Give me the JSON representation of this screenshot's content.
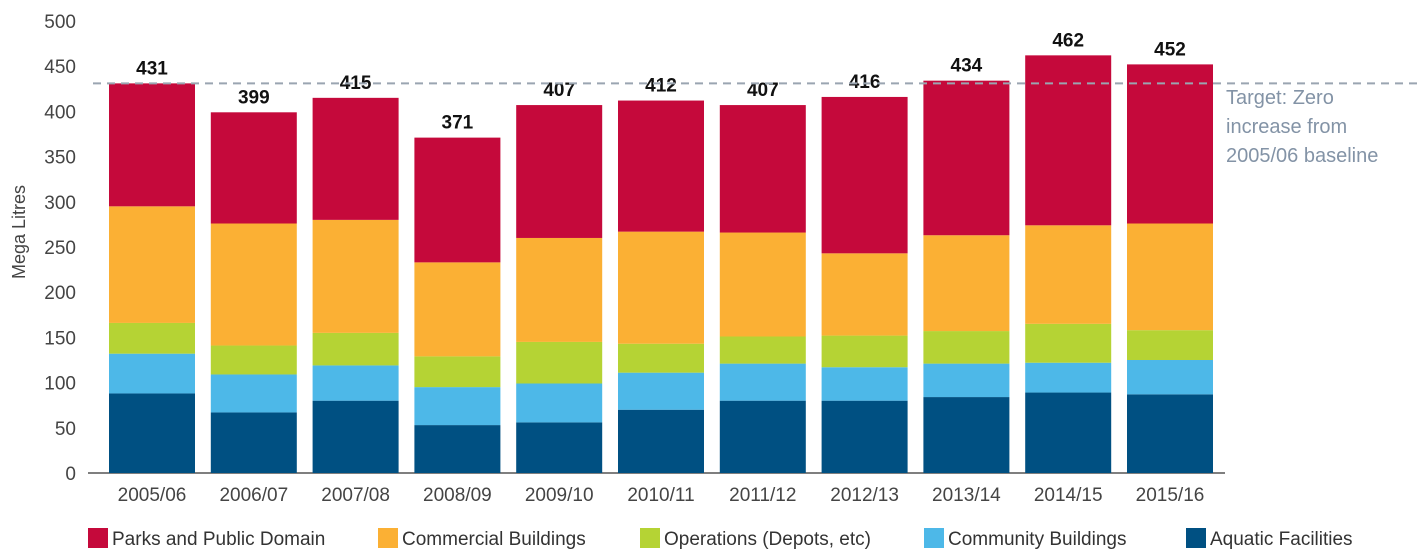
{
  "chart_data": {
    "type": "bar",
    "stacked": true,
    "ylabel": "Mega Litres",
    "ylim": [
      0,
      500
    ],
    "yticks": [
      0,
      50,
      100,
      150,
      200,
      250,
      300,
      350,
      400,
      450,
      500
    ],
    "categories": [
      "2005/06",
      "2006/07",
      "2007/08",
      "2008/09",
      "2009/10",
      "2010/11",
      "2011/12",
      "2012/13",
      "2013/14",
      "2014/15",
      "2015/16"
    ],
    "series": [
      {
        "name": "Aquatic Facilities",
        "color": "#005082",
        "values": [
          88,
          67,
          80,
          53,
          56,
          70,
          80,
          80,
          84,
          89,
          87
        ]
      },
      {
        "name": "Community Buildings",
        "color": "#4db8e8",
        "values": [
          44,
          42,
          39,
          42,
          43,
          41,
          41,
          37,
          37,
          33,
          38
        ]
      },
      {
        "name": "Operations (Depots, etc)",
        "color": "#b5d334",
        "values": [
          34,
          32,
          36,
          34,
          46,
          32,
          30,
          35,
          36,
          43,
          33
        ]
      },
      {
        "name": "Commercial Buildings",
        "color": "#fbb034",
        "values": [
          129,
          135,
          125,
          104,
          115,
          124,
          115,
          91,
          106,
          109,
          118
        ]
      },
      {
        "name": "Parks and Public Domain",
        "color": "#c5093b",
        "values": [
          136,
          123,
          135,
          138,
          147,
          145,
          141,
          173,
          171,
          188,
          176
        ]
      }
    ],
    "totals": [
      431,
      399,
      415,
      371,
      407,
      412,
      407,
      416,
      434,
      462,
      452
    ],
    "legend_order": [
      "Parks and Public Domain",
      "Commercial Buildings",
      "Operations (Depots, etc)",
      "Community Buildings",
      "Aquatic Facilities"
    ],
    "legend_position": "bottom",
    "target_line": {
      "value": 431,
      "color": "#9aa5b1",
      "label_lines": [
        "Target: Zero",
        "increase from",
        "2005/06 baseline"
      ]
    },
    "grid": false
  }
}
